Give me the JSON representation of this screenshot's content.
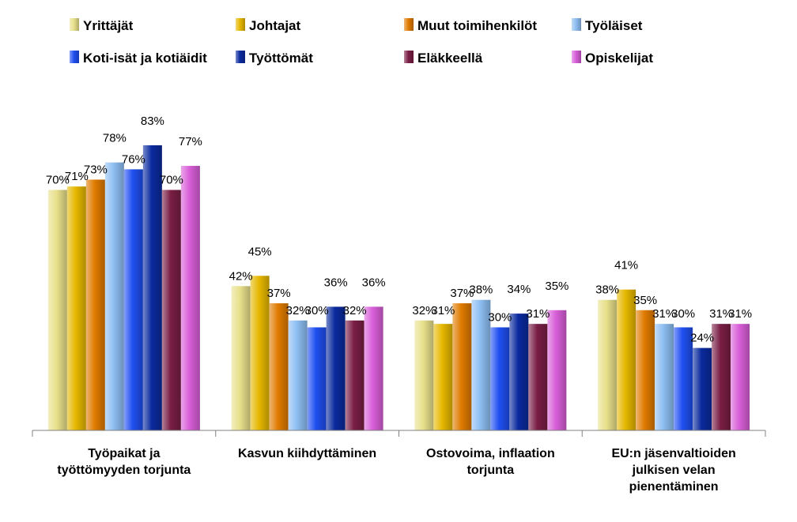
{
  "chart_data": {
    "type": "bar",
    "title": "",
    "xlabel": "",
    "ylabel": "",
    "ylim": [
      0,
      100
    ],
    "grid": false,
    "legend_position": "top",
    "value_suffix": "%",
    "categories": [
      [
        "Työpaikat ja",
        "työttömyyden torjunta"
      ],
      [
        "Kasvun kiihdyttäminen"
      ],
      [
        "Ostovoima, inflaation",
        "torjunta"
      ],
      [
        "EU:n jäsenvaltioiden",
        "julkisen velan",
        "pienentäminen"
      ]
    ],
    "series": [
      {
        "name": "Yrittäjät",
        "color": "#E8E08A",
        "values": [
          70,
          42,
          32,
          38
        ]
      },
      {
        "name": "Johtajat",
        "color": "#E6B800",
        "values": [
          71,
          45,
          31,
          41
        ]
      },
      {
        "name": "Muut toimihenkilöt",
        "color": "#E07B00",
        "values": [
          73,
          37,
          37,
          35
        ]
      },
      {
        "name": "Työläiset",
        "color": "#8DBEF2",
        "values": [
          78,
          32,
          38,
          31
        ]
      },
      {
        "name": "Koti-isät ja kotiäidit",
        "color": "#1F4FF0",
        "values": [
          76,
          30,
          30,
          30
        ]
      },
      {
        "name": "Työttömät",
        "color": "#0A2A9E",
        "values": [
          83,
          36,
          34,
          24
        ]
      },
      {
        "name": "Eläkkeellä",
        "color": "#7A1E45",
        "values": [
          70,
          32,
          31,
          31
        ]
      },
      {
        "name": "Opiskelijat",
        "color": "#D85ED8",
        "values": [
          77,
          36,
          35,
          31
        ]
      }
    ]
  }
}
